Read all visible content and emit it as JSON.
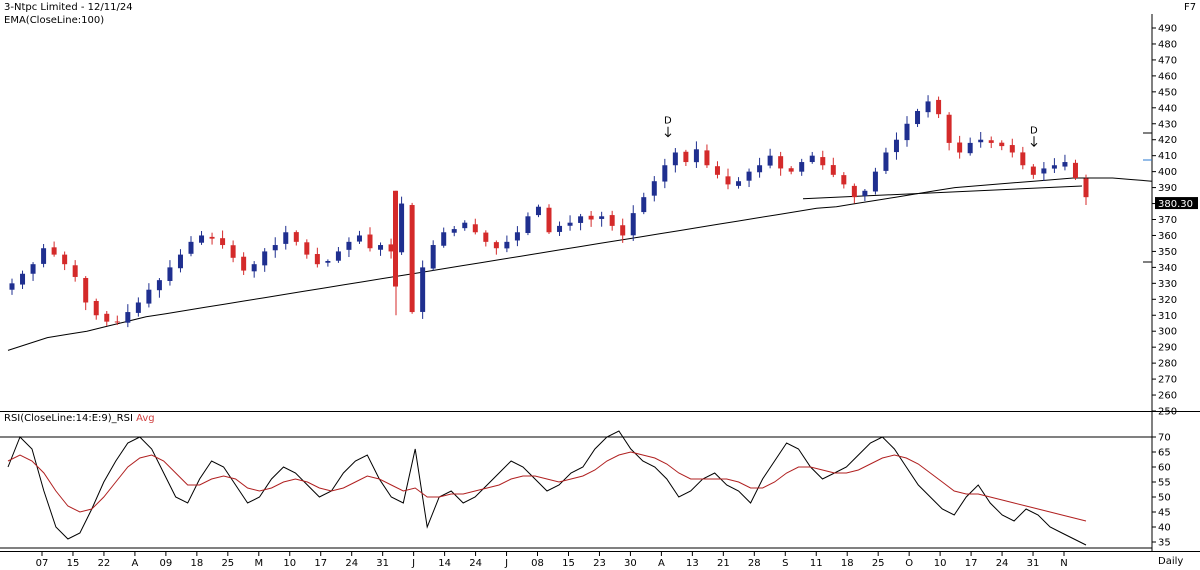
{
  "header": {
    "title": "3-Ntpc Limited - 12/11/24",
    "indicator": "EMA(CloseLine:100)",
    "function_key": "F7"
  },
  "rsi_panel": {
    "title": "RSI(CloseLine:14:E:9)_RSI",
    "avg_label": "Avg"
  },
  "timeframe": "Daily",
  "last_price_label": "380.30",
  "colors": {
    "bull": "#1f2f8f",
    "bear": "#d42a2a",
    "ema": "#000000",
    "rsi": "#000000",
    "rsi_avg": "#b02020",
    "grid": "#000000"
  },
  "chart_data": [
    {
      "type": "candlestick",
      "title": "3-Ntpc Limited - 12/11/24",
      "ylim": [
        245,
        495
      ],
      "y_ticks": [
        250,
        260,
        270,
        280,
        290,
        300,
        310,
        320,
        330,
        340,
        350,
        360,
        370,
        380,
        390,
        400,
        410,
        420,
        430,
        440,
        450,
        460,
        470,
        480,
        490
      ],
      "x_tick_labels": [
        "07",
        "15",
        "22",
        "A",
        "09",
        "18",
        "25",
        "M",
        "10",
        "17",
        "24",
        "31",
        "J",
        "14",
        "24",
        "J",
        "08",
        "15",
        "23",
        "30",
        "A",
        "13",
        "21",
        "28",
        "S",
        "11",
        "18",
        "25",
        "O",
        "10",
        "17",
        "24",
        "31",
        "N"
      ],
      "ohlc_close_path": [
        330,
        336,
        342,
        352,
        348,
        342,
        334,
        318,
        310,
        306,
        306,
        312,
        318,
        326,
        332,
        340,
        348,
        356,
        360,
        358,
        354,
        346,
        338,
        342,
        350,
        354,
        362,
        356,
        348,
        342,
        344,
        350,
        356,
        360,
        352,
        354,
        350,
        380,
        312,
        340,
        354,
        362,
        364,
        368,
        362,
        356,
        352,
        356,
        362,
        372,
        378,
        362,
        366,
        368,
        372,
        370,
        372,
        366,
        360,
        374,
        384,
        394,
        404,
        412,
        406,
        414,
        404,
        398,
        392,
        394,
        400,
        404,
        410,
        402,
        400,
        406,
        410,
        404,
        398,
        392,
        384,
        388,
        400,
        412,
        420,
        430,
        438,
        444,
        436,
        418,
        412,
        418,
        420,
        418,
        416,
        412,
        404,
        398,
        402,
        404,
        406,
        396,
        384
      ],
      "ema_label": "EMA(CloseLine:100)",
      "ema_path": [
        288,
        292,
        296,
        298,
        300,
        303,
        306,
        309,
        311,
        313,
        315,
        317,
        319,
        321,
        323,
        325,
        327,
        329,
        331,
        333,
        335,
        337,
        339,
        341,
        343,
        345,
        347,
        349,
        351,
        353,
        355,
        357,
        359,
        361,
        363,
        365,
        367,
        369,
        371,
        373,
        375,
        377,
        378,
        380,
        382,
        384,
        386,
        388,
        390,
        391,
        392,
        393,
        394,
        395,
        396,
        396,
        396,
        395,
        394
      ],
      "annotations": [
        {
          "text": "D",
          "near_value": 420
        },
        {
          "text": "D",
          "near_value": 414
        }
      ],
      "last_price": 380.3
    },
    {
      "type": "line",
      "title": "RSI(CloseLine:14:E:9)_RSI Avg",
      "ylim": [
        32,
        73
      ],
      "y_ticks": [
        35,
        40,
        45,
        50,
        55,
        60,
        65,
        70
      ],
      "reference_lines": [
        70,
        33
      ],
      "series": [
        {
          "name": "RSI",
          "values": [
            60,
            70,
            66,
            52,
            40,
            36,
            38,
            46,
            55,
            62,
            68,
            70,
            66,
            58,
            50,
            48,
            56,
            62,
            60,
            54,
            48,
            50,
            56,
            60,
            58,
            54,
            50,
            52,
            58,
            62,
            64,
            56,
            50,
            48,
            66,
            40,
            50,
            52,
            48,
            50,
            54,
            58,
            62,
            60,
            56,
            52,
            54,
            58,
            60,
            66,
            70,
            72,
            66,
            62,
            60,
            56,
            50,
            52,
            56,
            58,
            54,
            52,
            48,
            56,
            62,
            68,
            66,
            60,
            56,
            58,
            60,
            64,
            68,
            70,
            66,
            60,
            54,
            50,
            46,
            44,
            50,
            54,
            48,
            44,
            42,
            46,
            44,
            40,
            38,
            36,
            34
          ]
        },
        {
          "name": "RSI Avg",
          "values": [
            62,
            64,
            62,
            58,
            52,
            47,
            45,
            46,
            50,
            55,
            60,
            63,
            64,
            62,
            58,
            54,
            54,
            56,
            57,
            56,
            53,
            52,
            53,
            55,
            56,
            55,
            53,
            52,
            53,
            55,
            57,
            56,
            54,
            52,
            53,
            50,
            50,
            51,
            51,
            52,
            53,
            54,
            56,
            57,
            57,
            56,
            55,
            56,
            57,
            59,
            62,
            64,
            65,
            64,
            63,
            61,
            58,
            56,
            56,
            56,
            56,
            55,
            53,
            53,
            55,
            58,
            60,
            60,
            59,
            58,
            58,
            59,
            61,
            63,
            64,
            63,
            61,
            58,
            55,
            52,
            51,
            51,
            50,
            49,
            48,
            47,
            46,
            45,
            44,
            43,
            42
          ]
        }
      ]
    }
  ]
}
